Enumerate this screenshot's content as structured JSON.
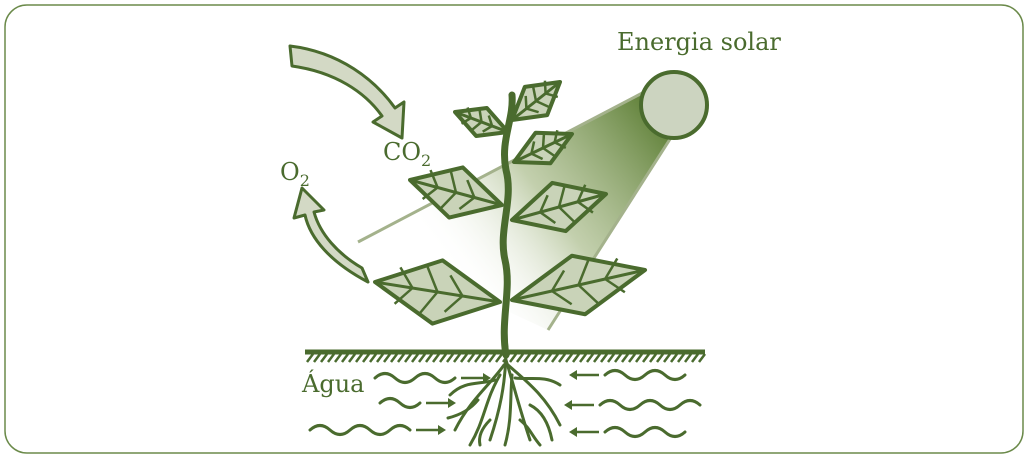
{
  "labels": {
    "energy": "Energia solar",
    "co2": {
      "base": "CO",
      "sub": "2"
    },
    "o2": {
      "base": "O",
      "sub": "2"
    },
    "water": "Água"
  }
}
